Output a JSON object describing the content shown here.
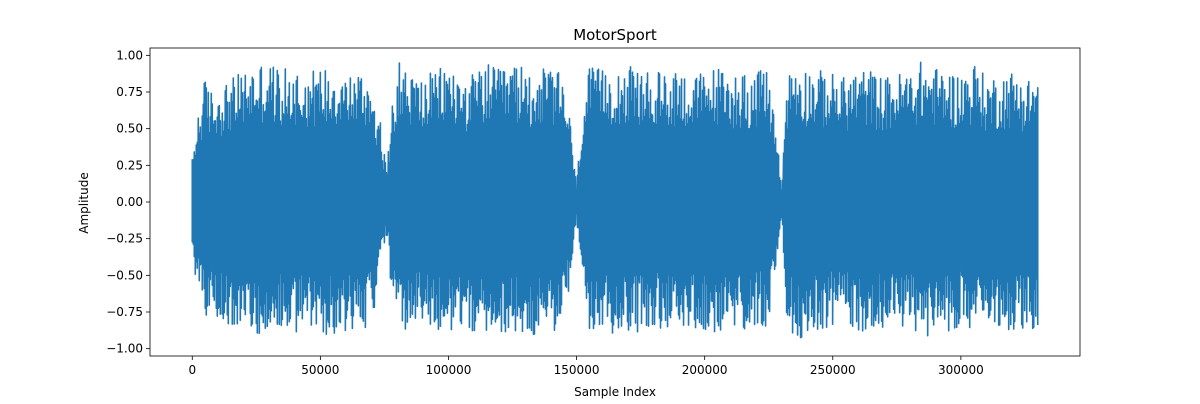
{
  "chart_data": {
    "type": "line",
    "title": "MotorSport",
    "xlabel": "Sample Index",
    "ylabel": "Amplitude",
    "xlim": [
      -16500,
      346500
    ],
    "ylim": [
      -1.05,
      1.05
    ],
    "xticks": [
      0,
      50000,
      100000,
      150000,
      200000,
      250000,
      300000
    ],
    "xtick_labels": [
      "0",
      "50000",
      "100000",
      "150000",
      "200000",
      "250000",
      "300000"
    ],
    "yticks": [
      -1.0,
      -0.75,
      -0.5,
      -0.25,
      0.0,
      0.25,
      0.5,
      0.75,
      1.0
    ],
    "ytick_labels": [
      "−1.00",
      "−0.75",
      "−0.50",
      "−0.25",
      "0.00",
      "0.25",
      "0.50",
      "0.75",
      "1.00"
    ],
    "grid": false,
    "legend": "none",
    "series": [
      {
        "color": "#1f77b4",
        "sample_count": 330000,
        "envelope": {
          "x": [
            0,
            2000,
            5000,
            8000,
            12000,
            16000,
            20000,
            25000,
            30000,
            35000,
            40000,
            45000,
            50000,
            55000,
            60000,
            65000,
            70000,
            73000,
            76000,
            78000,
            80000,
            85000,
            90000,
            95000,
            100000,
            105000,
            110000,
            115000,
            120000,
            125000,
            130000,
            135000,
            140000,
            145000,
            148000,
            150000,
            152000,
            155000,
            160000,
            165000,
            170000,
            175000,
            180000,
            185000,
            190000,
            195000,
            200000,
            205000,
            210000,
            215000,
            220000,
            225000,
            228000,
            230000,
            232000,
            235000,
            240000,
            245000,
            250000,
            255000,
            260000,
            265000,
            270000,
            275000,
            280000,
            285000,
            290000,
            295000,
            300000,
            305000,
            310000,
            315000,
            320000,
            325000,
            330000
          ],
          "max": [
            0.3,
            0.6,
            0.85,
            0.75,
            0.82,
            0.85,
            0.9,
            0.95,
            0.97,
            0.9,
            0.93,
            0.9,
            0.92,
            0.95,
            0.88,
            0.9,
            0.85,
            0.6,
            0.2,
            0.75,
            0.98,
            0.9,
            0.85,
            0.9,
            0.95,
            0.85,
            0.88,
            0.95,
            0.9,
            0.95,
            0.92,
            0.9,
            0.93,
            0.85,
            0.5,
            0.1,
            0.6,
            0.92,
            0.9,
            0.95,
            0.93,
            0.9,
            0.88,
            0.9,
            0.93,
            0.85,
            0.9,
            0.93,
            0.88,
            0.9,
            0.88,
            0.92,
            0.5,
            0.1,
            0.85,
            0.98,
            0.92,
            0.9,
            0.88,
            0.85,
            0.92,
            0.9,
            0.85,
            0.88,
            0.9,
            0.97,
            0.92,
            0.9,
            0.88,
            0.96,
            0.85,
            0.88,
            0.9,
            0.85,
            0.88
          ],
          "min": [
            -0.35,
            -0.6,
            -0.78,
            -0.8,
            -0.82,
            -0.85,
            -0.85,
            -0.9,
            -0.9,
            -0.88,
            -0.9,
            -0.88,
            -0.92,
            -0.9,
            -0.88,
            -0.88,
            -0.85,
            -0.55,
            -0.2,
            -0.7,
            -0.93,
            -0.88,
            -0.85,
            -0.88,
            -0.9,
            -0.85,
            -0.9,
            -0.93,
            -0.88,
            -0.9,
            -0.92,
            -0.9,
            -0.9,
            -0.85,
            -0.5,
            -0.1,
            -0.55,
            -0.92,
            -0.9,
            -0.9,
            -0.9,
            -0.88,
            -0.85,
            -0.88,
            -0.9,
            -0.85,
            -0.88,
            -0.92,
            -0.88,
            -0.9,
            -0.85,
            -0.85,
            -0.5,
            -0.1,
            -0.82,
            -0.95,
            -0.9,
            -0.88,
            -0.85,
            -0.82,
            -0.9,
            -0.88,
            -0.85,
            -0.85,
            -0.88,
            -0.92,
            -0.9,
            -0.88,
            -0.85,
            -0.9,
            -0.85,
            -0.85,
            -0.88,
            -0.88,
            -0.9
          ]
        }
      }
    ]
  }
}
